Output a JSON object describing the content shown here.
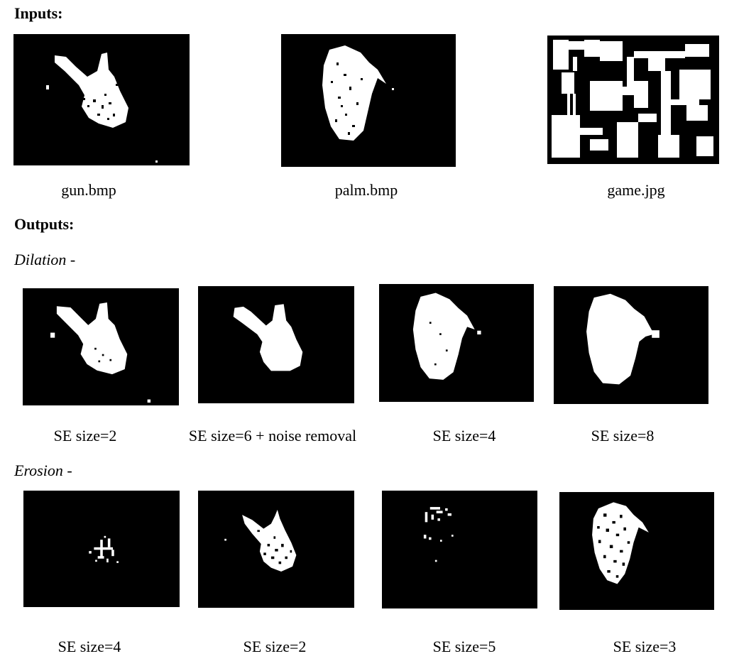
{
  "inputs_heading": "Inputs:",
  "outputs_heading": "Outputs:",
  "dilation": {
    "label": "Dilation",
    "suffix": " -"
  },
  "erosion": {
    "label": "Erosion",
    "suffix": " -"
  },
  "inputs": [
    {
      "caption": "gun.bmp"
    },
    {
      "caption": "palm.bmp"
    },
    {
      "caption": "game.jpg"
    }
  ],
  "dilation_outputs": [
    {
      "caption": "SE size=2"
    },
    {
      "caption": "SE size=6 + noise removal"
    },
    {
      "caption": "SE size=4"
    },
    {
      "caption": "SE size=8"
    }
  ],
  "erosion_outputs": [
    {
      "caption": "SE size=4"
    },
    {
      "caption": "SE size=2"
    },
    {
      "caption": "SE size=5"
    },
    {
      "caption": "SE size=3"
    }
  ]
}
